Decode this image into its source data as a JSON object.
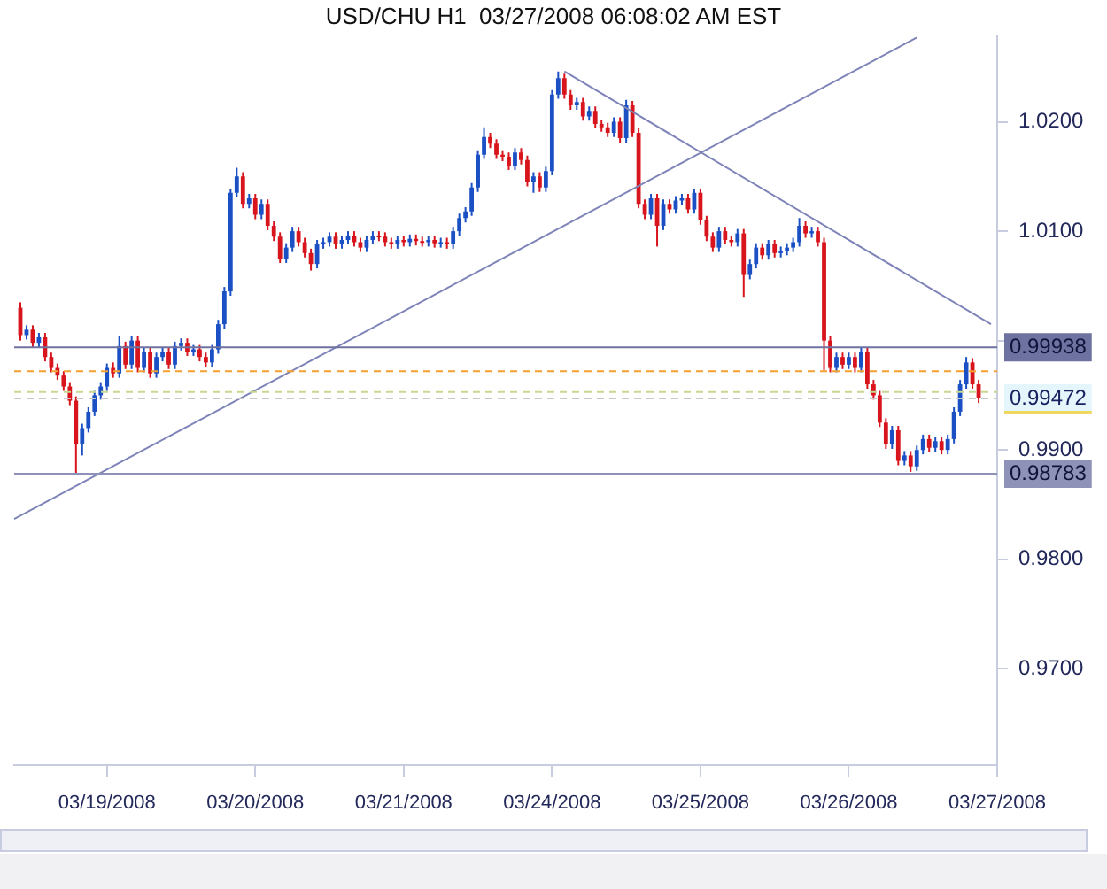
{
  "chart_data": {
    "type": "candlestick",
    "title": "USD/CHU H1  03/27/2008 06:08:02 AM EST",
    "categories": [
      null,
      null,
      null,
      null,
      null,
      null,
      null,
      null,
      null,
      null,
      null,
      null,
      null,
      null,
      null,
      "03/19/2008",
      null,
      null,
      null,
      null,
      null,
      null,
      null,
      null,
      null,
      null,
      null,
      null,
      null,
      null,
      null,
      null,
      null,
      null,
      null,
      null,
      null,
      null,
      null,
      "03/20/2008",
      null,
      null,
      null,
      null,
      null,
      null,
      null,
      null,
      null,
      null,
      null,
      null,
      null,
      null,
      null,
      null,
      null,
      null,
      null,
      null,
      null,
      null,
      null,
      "03/21/2008",
      null,
      null,
      null,
      null,
      null,
      null,
      null,
      null,
      null,
      null,
      null,
      null,
      null,
      null,
      null,
      null,
      null,
      null,
      null,
      null,
      null,
      null,
      null,
      "03/24/2008",
      null,
      null,
      null,
      null,
      null,
      null,
      null,
      null,
      null,
      null,
      null,
      null,
      null,
      null,
      null,
      null,
      null,
      null,
      null,
      null,
      null,
      null,
      null,
      "03/25/2008",
      null,
      null,
      null,
      null,
      null,
      null,
      null,
      null,
      null,
      null,
      null,
      null,
      null,
      null,
      null,
      null,
      null,
      null,
      null,
      null,
      null,
      null,
      null,
      "03/26/2008",
      null,
      null,
      null,
      null,
      null,
      null,
      null,
      null,
      null,
      null,
      null,
      null,
      null,
      null,
      null,
      null,
      null,
      null,
      null,
      null,
      null,
      null,
      null,
      "03/27/2008"
    ],
    "ohlc": [
      null,
      [
        1.003,
        1.0035,
        1.0,
        1.0005
      ],
      [
        1.0005,
        1.0014,
        1.0001,
        1.001
      ],
      [
        1.001,
        1.0014,
        0.9994,
        0.9998
      ],
      [
        0.9998,
        1.0007,
        0.9994,
        1.0003
      ],
      [
        1.0003,
        1.0007,
        0.9981,
        0.9985
      ],
      [
        0.9985,
        0.9989,
        0.9971,
        0.9975
      ],
      [
        0.9975,
        0.9979,
        0.9964,
        0.9968
      ],
      [
        0.9968,
        0.9972,
        0.9954,
        0.9958
      ],
      [
        0.9958,
        0.9962,
        0.9941,
        0.9945
      ],
      [
        0.9945,
        0.9949,
        0.98783,
        0.9905
      ],
      [
        0.9905,
        0.9924,
        0.9895,
        0.992
      ],
      [
        0.992,
        0.9939,
        0.9916,
        0.9935
      ],
      [
        0.9935,
        0.9954,
        0.9931,
        0.995
      ],
      [
        0.995,
        0.9962,
        0.9946,
        0.9958
      ],
      [
        0.9958,
        0.9979,
        0.9954,
        0.9975
      ],
      [
        0.9975,
        0.998,
        0.9966,
        0.997
      ],
      [
        0.997,
        1.0004,
        0.9966,
        0.9995
      ],
      [
        0.9995,
        0.9999,
        0.9974,
        0.9978
      ],
      [
        0.9978,
        1.0004,
        0.9974,
        1.0
      ],
      [
        1.0,
        1.0004,
        0.9971,
        0.9975
      ],
      [
        0.9975,
        0.9994,
        0.9971,
        0.999
      ],
      [
        0.999,
        0.9994,
        0.9966,
        0.997
      ],
      [
        0.997,
        0.9989,
        0.9966,
        0.9985
      ],
      [
        0.9985,
        0.9994,
        0.9981,
        0.999
      ],
      [
        0.999,
        0.9994,
        0.9974,
        0.9978
      ],
      [
        0.9978,
        0.9999,
        0.9974,
        0.9995
      ],
      [
        0.9995,
        1.0002,
        0.9991,
        0.9998
      ],
      [
        0.9998,
        1.0002,
        0.9986,
        0.999
      ],
      [
        0.999,
        0.9996,
        0.9986,
        0.9992
      ],
      [
        0.9992,
        0.9996,
        0.9981,
        0.9985
      ],
      [
        0.9985,
        0.9989,
        0.9976,
        0.998
      ],
      [
        0.998,
        0.9996,
        0.9976,
        0.9992
      ],
      [
        0.9992,
        1.0019,
        0.9988,
        1.0015
      ],
      [
        1.0015,
        1.0049,
        1.0011,
        1.0045
      ],
      [
        1.0045,
        1.0139,
        1.0041,
        1.0135
      ],
      [
        1.0135,
        1.0158,
        1.0131,
        1.015
      ],
      [
        1.015,
        1.0154,
        1.0121,
        1.0125
      ],
      [
        1.0125,
        1.0134,
        1.0121,
        1.013
      ],
      [
        1.013,
        1.0134,
        1.0111,
        1.0115
      ],
      [
        1.0115,
        1.0129,
        1.0111,
        1.0125
      ],
      [
        1.0125,
        1.0129,
        1.0101,
        1.0105
      ],
      [
        1.0105,
        1.0109,
        1.0091,
        1.0095
      ],
      [
        1.0095,
        1.0099,
        1.0071,
        1.0075
      ],
      [
        1.0075,
        1.0089,
        1.0071,
        1.0085
      ],
      [
        1.0085,
        1.0104,
        1.0081,
        1.01
      ],
      [
        1.01,
        1.0104,
        1.0086,
        1.009
      ],
      [
        1.009,
        1.0094,
        1.0076,
        1.008
      ],
      [
        1.008,
        1.0084,
        1.0064,
        1.007
      ],
      [
        1.007,
        1.0092,
        1.0066,
        1.0088
      ],
      [
        1.0088,
        1.0094,
        1.0084,
        1.009
      ],
      [
        1.009,
        1.0099,
        1.0086,
        1.0095
      ],
      [
        1.0095,
        1.0099,
        1.0084,
        1.0088
      ],
      [
        1.0088,
        1.0096,
        1.0084,
        1.0092
      ],
      [
        1.0092,
        1.01,
        1.0088,
        1.0096
      ],
      [
        1.0096,
        1.01,
        1.0086,
        1.009
      ],
      [
        1.009,
        1.0094,
        1.0081,
        1.0085
      ],
      [
        1.0085,
        1.0096,
        1.0081,
        1.0092
      ],
      [
        1.0092,
        1.01,
        1.0088,
        1.0096
      ],
      [
        1.0096,
        1.01,
        1.0091,
        1.0095
      ],
      [
        1.0095,
        1.0099,
        1.0086,
        1.009
      ],
      [
        1.009,
        1.0094,
        1.0084,
        1.0088
      ],
      [
        1.0088,
        1.0096,
        1.0084,
        1.0092
      ],
      [
        1.0092,
        1.0096,
        1.0086,
        1.009
      ],
      [
        1.009,
        1.0097,
        1.0086,
        1.0093
      ],
      [
        1.0093,
        1.0097,
        1.0087,
        1.0091
      ],
      [
        1.0091,
        1.0095,
        1.0086,
        1.009
      ],
      [
        1.009,
        1.0096,
        1.0086,
        1.0092
      ],
      [
        1.0092,
        1.0096,
        1.0085,
        1.0089
      ],
      [
        1.0089,
        1.0094,
        1.0085,
        1.009
      ],
      [
        1.009,
        1.0094,
        1.0084,
        1.0088
      ],
      [
        1.0088,
        1.0104,
        1.0084,
        1.01
      ],
      [
        1.01,
        1.0116,
        1.0096,
        1.0112
      ],
      [
        1.0112,
        1.0122,
        1.0108,
        1.0118
      ],
      [
        1.0118,
        1.0144,
        1.0114,
        1.014
      ],
      [
        1.014,
        1.0174,
        1.0136,
        1.017
      ],
      [
        1.017,
        1.0195,
        1.0166,
        1.0186
      ],
      [
        1.0186,
        1.019,
        1.0176,
        1.018
      ],
      [
        1.018,
        1.0184,
        1.0166,
        1.017
      ],
      [
        1.017,
        1.0174,
        1.0164,
        1.0168
      ],
      [
        1.0168,
        1.0172,
        1.0156,
        1.016
      ],
      [
        1.016,
        1.0176,
        1.0156,
        1.0172
      ],
      [
        1.0172,
        1.0176,
        1.0161,
        1.0165
      ],
      [
        1.0165,
        1.0169,
        1.0141,
        1.0145
      ],
      [
        1.0145,
        1.0154,
        1.0135,
        1.015
      ],
      [
        1.015,
        1.0154,
        1.0136,
        1.014
      ],
      [
        1.014,
        1.0159,
        1.0136,
        1.0155
      ],
      [
        1.0155,
        1.0229,
        1.0151,
        1.0225
      ],
      [
        1.0225,
        1.0246,
        1.0221,
        1.024
      ],
      [
        1.024,
        1.0244,
        1.0221,
        1.0225
      ],
      [
        1.0225,
        1.0229,
        1.0211,
        1.0215
      ],
      [
        1.0215,
        1.0222,
        1.0211,
        1.0218
      ],
      [
        1.0218,
        1.0222,
        1.0201,
        1.0205
      ],
      [
        1.0205,
        1.0214,
        1.0201,
        1.021
      ],
      [
        1.021,
        1.0214,
        1.0194,
        1.0198
      ],
      [
        1.0198,
        1.0202,
        1.0191,
        1.0195
      ],
      [
        1.0195,
        1.0199,
        1.0186,
        1.019
      ],
      [
        1.019,
        1.0204,
        1.0186,
        1.02
      ],
      [
        1.02,
        1.0204,
        1.0181,
        1.0185
      ],
      [
        1.0185,
        1.022,
        1.0181,
        1.0215
      ],
      [
        1.0215,
        1.0219,
        1.0186,
        1.019
      ],
      [
        1.019,
        1.0194,
        1.0121,
        1.0125
      ],
      [
        1.0125,
        1.0129,
        1.0111,
        1.0115
      ],
      [
        1.0115,
        1.0134,
        1.0111,
        1.013
      ],
      [
        1.013,
        1.0134,
        1.0086,
        1.0105
      ],
      [
        1.0105,
        1.0129,
        1.0101,
        1.0125
      ],
      [
        1.0125,
        1.0129,
        1.0116,
        1.012
      ],
      [
        1.012,
        1.0132,
        1.0116,
        1.0128
      ],
      [
        1.0128,
        1.0134,
        1.0124,
        1.013
      ],
      [
        1.013,
        1.0134,
        1.0116,
        1.012
      ],
      [
        1.012,
        1.0139,
        1.0116,
        1.0135
      ],
      [
        1.0135,
        1.0139,
        1.0106,
        1.011
      ],
      [
        1.011,
        1.0114,
        1.0091,
        1.0095
      ],
      [
        1.0095,
        1.0099,
        1.0081,
        1.0085
      ],
      [
        1.0085,
        1.0104,
        1.0081,
        1.01
      ],
      [
        1.01,
        1.0104,
        1.0088,
        1.0092
      ],
      [
        1.0092,
        1.0096,
        1.0086,
        1.009
      ],
      [
        1.009,
        1.0102,
        1.0086,
        1.0098
      ],
      [
        1.0098,
        1.0102,
        1.004,
        1.006
      ],
      [
        1.006,
        1.0074,
        1.0056,
        1.007
      ],
      [
        1.007,
        1.0089,
        1.0066,
        1.0085
      ],
      [
        1.0085,
        1.0089,
        1.0074,
        1.0078
      ],
      [
        1.0078,
        1.0092,
        1.0074,
        1.0088
      ],
      [
        1.0088,
        1.0092,
        1.0076,
        1.008
      ],
      [
        1.008,
        1.0086,
        1.0076,
        1.0082
      ],
      [
        1.0082,
        1.0089,
        1.0078,
        1.0085
      ],
      [
        1.0085,
        1.0094,
        1.0081,
        1.009
      ],
      [
        1.009,
        1.0112,
        1.0086,
        1.0105
      ],
      [
        1.0105,
        1.0109,
        1.0094,
        1.0098
      ],
      [
        1.0098,
        1.0104,
        1.0094,
        1.01
      ],
      [
        1.01,
        1.0104,
        1.0086,
        1.009
      ],
      [
        1.009,
        1.0094,
        0.9973,
        1.0
      ],
      [
        1.0,
        1.0004,
        0.9971,
        0.9975
      ],
      [
        0.9975,
        0.9989,
        0.9971,
        0.9985
      ],
      [
        0.9985,
        0.9989,
        0.9974,
        0.9978
      ],
      [
        0.9978,
        0.9989,
        0.9974,
        0.9985
      ],
      [
        0.9985,
        0.9989,
        0.9971,
        0.9975
      ],
      [
        0.9975,
        0.9994,
        0.9971,
        0.999
      ],
      [
        0.999,
        0.9994,
        0.9956,
        0.996
      ],
      [
        0.996,
        0.9964,
        0.9946,
        0.995
      ],
      [
        0.995,
        0.9954,
        0.9921,
        0.9925
      ],
      [
        0.9925,
        0.9929,
        0.9901,
        0.9905
      ],
      [
        0.9905,
        0.9922,
        0.9901,
        0.9918
      ],
      [
        0.9918,
        0.9922,
        0.9886,
        0.989
      ],
      [
        0.989,
        0.9899,
        0.9886,
        0.9895
      ],
      [
        0.9895,
        0.9899,
        0.988,
        0.9885
      ],
      [
        0.9885,
        0.9904,
        0.9881,
        0.99
      ],
      [
        0.99,
        0.9914,
        0.9896,
        0.991
      ],
      [
        0.991,
        0.9914,
        0.9898,
        0.9902
      ],
      [
        0.9902,
        0.9912,
        0.9898,
        0.9908
      ],
      [
        0.9908,
        0.9912,
        0.9896,
        0.99
      ],
      [
        0.99,
        0.9914,
        0.9896,
        0.991
      ],
      [
        0.991,
        0.9939,
        0.9906,
        0.9935
      ],
      [
        0.9935,
        0.9964,
        0.9931,
        0.996
      ],
      [
        0.996,
        0.9985,
        0.9956,
        0.998
      ],
      [
        0.998,
        0.9984,
        0.9956,
        0.996
      ],
      [
        0.996,
        0.9964,
        0.9943,
        0.99472
      ],
      null,
      null,
      null
    ],
    "colors": [
      null,
      "#d8141c",
      "#1a50c4",
      "#d8141c",
      "#1a50c4",
      "#d8141c",
      "#d8141c",
      "#d8141c",
      "#d8141c",
      "#d8141c",
      "#d8141c",
      "#1a50c4",
      "#1a50c4",
      "#1a50c4",
      "#1a50c4",
      "#1a50c4",
      "#d8141c",
      "#1a50c4",
      "#d8141c",
      "#1a50c4",
      "#d8141c",
      "#1a50c4",
      "#d8141c",
      "#1a50c4",
      "#1a50c4",
      "#d8141c",
      "#1a50c4",
      "#1a50c4",
      "#d8141c",
      "#1a50c4",
      "#d8141c",
      "#d8141c",
      "#1a50c4",
      "#1a50c4",
      "#1a50c4",
      "#1a50c4",
      "#1a50c4",
      "#d8141c",
      "#1a50c4",
      "#d8141c",
      "#1a50c4",
      "#d8141c",
      "#d8141c",
      "#d8141c",
      "#1a50c4",
      "#1a50c4",
      "#d8141c",
      "#d8141c",
      "#d8141c",
      "#1a50c4",
      "#1a50c4",
      "#1a50c4",
      "#d8141c",
      "#1a50c4",
      "#1a50c4",
      "#d8141c",
      "#d8141c",
      "#1a50c4",
      "#1a50c4",
      "#d8141c",
      "#d8141c",
      "#d8141c",
      "#1a50c4",
      "#d8141c",
      "#1a50c4",
      "#d8141c",
      "#d8141c",
      "#1a50c4",
      "#d8141c",
      "#1a50c4",
      "#d8141c",
      "#1a50c4",
      "#1a50c4",
      "#1a50c4",
      "#1a50c4",
      "#1a50c4",
      "#1a50c4",
      "#d8141c",
      "#d8141c",
      "#d8141c",
      "#d8141c",
      "#1a50c4",
      "#d8141c",
      "#d8141c",
      "#1a50c4",
      "#d8141c",
      "#1a50c4",
      "#1a50c4",
      "#1a50c4",
      "#d8141c",
      "#d8141c",
      "#1a50c4",
      "#d8141c",
      "#1a50c4",
      "#d8141c",
      "#d8141c",
      "#d8141c",
      "#1a50c4",
      "#d8141c",
      "#1a50c4",
      "#d8141c",
      "#d8141c",
      "#d8141c",
      "#1a50c4",
      "#d8141c",
      "#1a50c4",
      "#d8141c",
      "#1a50c4",
      "#1a50c4",
      "#d8141c",
      "#1a50c4",
      "#d8141c",
      "#d8141c",
      "#d8141c",
      "#1a50c4",
      "#d8141c",
      "#d8141c",
      "#1a50c4",
      "#d8141c",
      "#1a50c4",
      "#1a50c4",
      "#d8141c",
      "#1a50c4",
      "#d8141c",
      "#1a50c4",
      "#1a50c4",
      "#1a50c4",
      "#1a50c4",
      "#d8141c",
      "#1a50c4",
      "#d8141c",
      "#d8141c",
      "#d8141c",
      "#1a50c4",
      "#d8141c",
      "#1a50c4",
      "#d8141c",
      "#1a50c4",
      "#d8141c",
      "#d8141c",
      "#d8141c",
      "#d8141c",
      "#1a50c4",
      "#d8141c",
      "#1a50c4",
      "#d8141c",
      "#1a50c4",
      "#1a50c4",
      "#d8141c",
      "#1a50c4",
      "#d8141c",
      "#1a50c4",
      "#1a50c4",
      "#1a50c4",
      "#1a50c4",
      "#d8141c",
      "#d8141c",
      null,
      null,
      null
    ],
    "series": [
      {
        "type": "line",
        "color": "#7f84b8",
        "values": [
          0.9837,
          null,
          null,
          null,
          null,
          null,
          null,
          null,
          null,
          null,
          null,
          null,
          null,
          null,
          null,
          null,
          null,
          null,
          null,
          null,
          null,
          null,
          null,
          null,
          null,
          null,
          null,
          null,
          null,
          null,
          null,
          null,
          null,
          null,
          null,
          null,
          null,
          null,
          null,
          null,
          null,
          null,
          null,
          null,
          null,
          null,
          null,
          null,
          null,
          null,
          null,
          null,
          null,
          null,
          null,
          null,
          null,
          null,
          null,
          null,
          null,
          null,
          null,
          null,
          null,
          null,
          null,
          null,
          null,
          null,
          null,
          null,
          null,
          null,
          null,
          null,
          null,
          null,
          null,
          null,
          null,
          null,
          null,
          null,
          null,
          null,
          null,
          null,
          null,
          null,
          null,
          null,
          null,
          null,
          null,
          null,
          null,
          null,
          null,
          null,
          null,
          null,
          null,
          null,
          null,
          null,
          null,
          null,
          null,
          null,
          null,
          null,
          null,
          null,
          null,
          null,
          null,
          null,
          null,
          null,
          null,
          null,
          null,
          null,
          null,
          null,
          null,
          null,
          null,
          null,
          null,
          null,
          null,
          null,
          null,
          null,
          null,
          null,
          null,
          null,
          null,
          null,
          null,
          null,
          null,
          null,
          1.0277,
          null,
          null,
          null,
          null,
          null,
          null,
          null,
          null,
          null,
          null,
          null,
          null,
          null
        ]
      },
      {
        "type": "line",
        "color": "#7f84b8",
        "values": [
          null,
          null,
          null,
          null,
          null,
          null,
          null,
          null,
          null,
          null,
          null,
          null,
          null,
          null,
          null,
          null,
          null,
          null,
          null,
          null,
          null,
          null,
          null,
          null,
          null,
          null,
          null,
          null,
          null,
          null,
          null,
          null,
          null,
          null,
          null,
          null,
          null,
          null,
          null,
          null,
          null,
          null,
          null,
          null,
          null,
          null,
          null,
          null,
          null,
          null,
          null,
          null,
          null,
          null,
          null,
          null,
          null,
          null,
          null,
          null,
          null,
          null,
          null,
          null,
          null,
          null,
          null,
          null,
          null,
          null,
          null,
          null,
          null,
          null,
          null,
          null,
          null,
          null,
          null,
          null,
          null,
          null,
          null,
          null,
          null,
          null,
          null,
          null,
          null,
          1.0246,
          null,
          null,
          null,
          null,
          null,
          null,
          null,
          null,
          null,
          null,
          null,
          null,
          null,
          null,
          null,
          null,
          null,
          null,
          null,
          null,
          null,
          null,
          null,
          null,
          null,
          null,
          null,
          null,
          null,
          null,
          null,
          null,
          null,
          null,
          null,
          null,
          null,
          null,
          null,
          null,
          null,
          null,
          null,
          null,
          null,
          null,
          null,
          null,
          null,
          null,
          null,
          null,
          null,
          null,
          null,
          null,
          null,
          null,
          null,
          null,
          null,
          null,
          null,
          null,
          null,
          null,
          null,
          null,
          1.0015,
          null
        ]
      }
    ],
    "ylim": [
      0.9612,
      1.0278
    ],
    "yticks": [
      {
        "value": 0.97,
        "label": "0.9700"
      },
      {
        "value": 0.98,
        "label": "0.9800"
      },
      {
        "value": 0.99,
        "label": "0.9900"
      },
      {
        "value": 1.0,
        "label": null
      },
      {
        "value": 1.01,
        "label": "1.0100"
      },
      {
        "value": 1.02,
        "label": "1.0200"
      }
    ],
    "ref_lines": [
      {
        "axis": "y",
        "value": 0.99938,
        "label": "0.99938",
        "color": "#6e72a0",
        "line_style": "solid"
      },
      {
        "axis": "y",
        "value": 0.98783,
        "label": "0.98783",
        "color": "#8e92b8",
        "line_style": "solid"
      },
      {
        "axis": "y",
        "value": 0.9972,
        "color": "#f5a030",
        "line_style": "dashed"
      },
      {
        "axis": "y",
        "value": 0.9953,
        "color": "#c8d890",
        "line_style": "dashed"
      },
      {
        "axis": "y",
        "value": 0.99472,
        "label": "0.99472",
        "color": "#c8c8c8",
        "line_style": "dashed"
      }
    ],
    "grid": false,
    "legend": false,
    "marker": "none"
  }
}
